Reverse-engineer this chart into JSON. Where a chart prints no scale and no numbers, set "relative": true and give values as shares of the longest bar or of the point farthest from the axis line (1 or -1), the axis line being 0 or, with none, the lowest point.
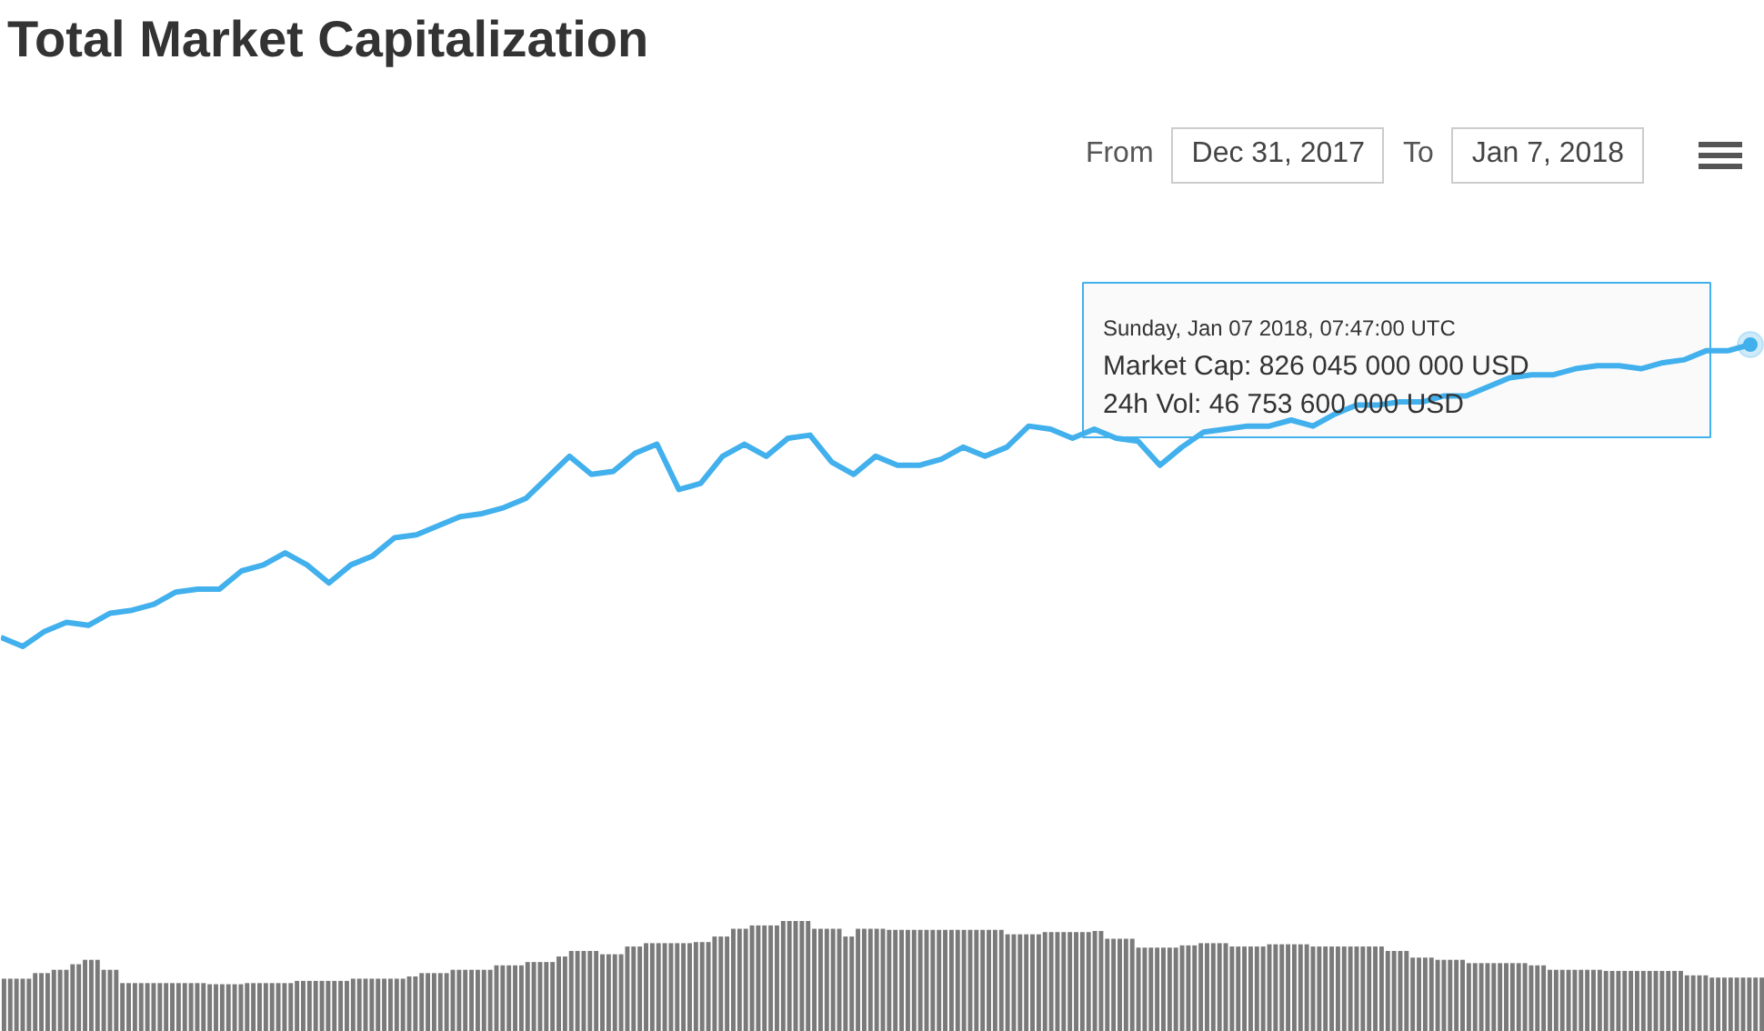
{
  "chart_data": [
    {
      "type": "line",
      "title": "Total Market Capitalization",
      "relative": true,
      "annotations": [
        "From",
        "Dec 31, 2017",
        "To",
        "Jan 7, 2018",
        "Sunday, Jan 07 2018, 07:47:00 UTC",
        "Market Cap: 826 045 000 000 USD",
        "24h Vol: 46 753 600 000 USD"
      ],
      "categories": [
        null,
        null,
        null,
        null,
        null,
        null,
        null,
        null,
        null,
        null,
        null,
        null,
        null,
        null,
        null,
        null,
        null,
        null,
        null,
        null,
        null,
        null,
        null,
        null,
        null,
        null,
        null,
        null,
        null,
        null,
        null,
        null,
        null,
        null,
        null,
        null,
        null,
        null,
        null,
        null,
        null,
        null,
        null,
        null,
        null,
        null,
        null,
        null,
        null,
        null,
        null,
        null,
        null,
        null,
        null,
        null,
        null,
        null,
        null,
        null,
        null,
        null,
        null,
        null,
        null,
        null,
        null,
        null,
        null,
        null,
        null,
        null,
        null,
        null,
        null,
        null,
        null,
        null,
        null,
        null,
        null
      ],
      "marker": "none",
      "line_style": "solid",
      "grid": false,
      "series": [
        {
          "color": "#41b0ec",
          "values": [
            0.03,
            0,
            0.05,
            0.08,
            0.07,
            0.11,
            0.12,
            0.14,
            0.18,
            0.19,
            0.19,
            0.25,
            0.27,
            0.31,
            0.27,
            0.21,
            0.27,
            0.3,
            0.36,
            0.37,
            0.4,
            0.43,
            0.44,
            0.46,
            0.49,
            0.56,
            0.63,
            0.57,
            0.58,
            0.64,
            0.67,
            0.52,
            0.54,
            0.63,
            0.67,
            0.63,
            0.69,
            0.7,
            0.61,
            0.57,
            0.63,
            0.6,
            0.6,
            0.62,
            0.66,
            0.63,
            0.66,
            0.73,
            0.72,
            0.69,
            0.72,
            0.69,
            0.68,
            0.6,
            0.66,
            0.71,
            0.72,
            0.73,
            0.73,
            0.75,
            0.73,
            0.77,
            0.8,
            0.8,
            0.81,
            0.81,
            0.83,
            0.83,
            0.86,
            0.89,
            0.9,
            0.9,
            0.92,
            0.93,
            0.93,
            0.92,
            0.94,
            0.95,
            0.98,
            0.98,
            1
          ]
        }
      ]
    },
    {
      "type": "bar",
      "relative": true,
      "color": "#7a7a7a",
      "grid": false,
      "categories": [
        null,
        null,
        null,
        null,
        null,
        null,
        null,
        null,
        null,
        null,
        null,
        null,
        null,
        null,
        null,
        null,
        null,
        null,
        null,
        null,
        null,
        null,
        null,
        null,
        null,
        null,
        null,
        null,
        null,
        null,
        null,
        null,
        null,
        null,
        null,
        null,
        null,
        null,
        null,
        null,
        null,
        null,
        null,
        null,
        null,
        null,
        null,
        null,
        null,
        null,
        null,
        null,
        null,
        null,
        null,
        null,
        null,
        null,
        null,
        null,
        null,
        null,
        null,
        null,
        null,
        null,
        null,
        null,
        null,
        null,
        null,
        null,
        null,
        null,
        null,
        null,
        null,
        null,
        null,
        null,
        null,
        null,
        null,
        null,
        null,
        null,
        null,
        null,
        null,
        null,
        null,
        null,
        null,
        null,
        null,
        null,
        null,
        null,
        null,
        null,
        null,
        null,
        null,
        null,
        null,
        null,
        null,
        null,
        null,
        null,
        null,
        null,
        null,
        null,
        null,
        null,
        null,
        null,
        null,
        null,
        null,
        null,
        null,
        null,
        null,
        null,
        null,
        null,
        null,
        null,
        null,
        null,
        null,
        null,
        null,
        null,
        null,
        null,
        null,
        null,
        null,
        null,
        null,
        null,
        null,
        null,
        null,
        null,
        null,
        null,
        null,
        null,
        null,
        null,
        null,
        null,
        null,
        null,
        null,
        null,
        null,
        null,
        null,
        null,
        null,
        null,
        null,
        null,
        null,
        null,
        null,
        null,
        null,
        null,
        null,
        null,
        null,
        null,
        null,
        null,
        null,
        null,
        null,
        null,
        null,
        null,
        null,
        null,
        null,
        null,
        null,
        null,
        null,
        null,
        null,
        null,
        null,
        null,
        null,
        null,
        null,
        null,
        null,
        null,
        null,
        null,
        null,
        null,
        null,
        null,
        null,
        null,
        null,
        null,
        null,
        null,
        null,
        null,
        null,
        null,
        null,
        null,
        null,
        null,
        null,
        null,
        null,
        null,
        null,
        null,
        null,
        null,
        null,
        null,
        null,
        null,
        null,
        null,
        null,
        null,
        null,
        null,
        null,
        null,
        null,
        null,
        null,
        null,
        null,
        null,
        null,
        null,
        null,
        null,
        null,
        null,
        null,
        null,
        null,
        null,
        null,
        null,
        null,
        null,
        null,
        null,
        null,
        null,
        null,
        null,
        null,
        null,
        null,
        null,
        null,
        null,
        null,
        null,
        null,
        null,
        null,
        null,
        null
      ],
      "values": [
        0.48,
        0.48,
        0.48,
        0.48,
        0.48,
        0.53,
        0.53,
        0.53,
        0.56,
        0.56,
        0.56,
        0.61,
        0.61,
        0.65,
        0.65,
        0.65,
        0.56,
        0.56,
        0.56,
        0.44,
        0.44,
        0.44,
        0.44,
        0.44,
        0.44,
        0.44,
        0.44,
        0.44,
        0.44,
        0.44,
        0.44,
        0.44,
        0.44,
        0.43,
        0.43,
        0.43,
        0.43,
        0.43,
        0.43,
        0.44,
        0.44,
        0.44,
        0.44,
        0.44,
        0.44,
        0.44,
        0.44,
        0.46,
        0.46,
        0.46,
        0.46,
        0.46,
        0.46,
        0.46,
        0.46,
        0.46,
        0.48,
        0.48,
        0.48,
        0.48,
        0.48,
        0.48,
        0.48,
        0.48,
        0.48,
        0.5,
        0.5,
        0.53,
        0.53,
        0.53,
        0.53,
        0.53,
        0.56,
        0.56,
        0.56,
        0.56,
        0.56,
        0.56,
        0.56,
        0.6,
        0.6,
        0.6,
        0.6,
        0.6,
        0.63,
        0.63,
        0.63,
        0.63,
        0.63,
        0.68,
        0.68,
        0.73,
        0.73,
        0.73,
        0.73,
        0.73,
        0.7,
        0.7,
        0.7,
        0.7,
        0.77,
        0.77,
        0.77,
        0.8,
        0.8,
        0.8,
        0.8,
        0.8,
        0.8,
        0.8,
        0.8,
        0.81,
        0.81,
        0.81,
        0.86,
        0.86,
        0.86,
        0.93,
        0.93,
        0.93,
        0.96,
        0.96,
        0.96,
        0.96,
        0.96,
        1,
        1,
        1,
        1,
        1,
        0.93,
        0.93,
        0.93,
        0.93,
        0.93,
        0.86,
        0.86,
        0.93,
        0.93,
        0.93,
        0.93,
        0.93,
        0.92,
        0.92,
        0.92,
        0.92,
        0.92,
        0.92,
        0.92,
        0.92,
        0.92,
        0.92,
        0.92,
        0.92,
        0.92,
        0.92,
        0.92,
        0.92,
        0.92,
        0.92,
        0.92,
        0.88,
        0.88,
        0.88,
        0.88,
        0.88,
        0.88,
        0.9,
        0.9,
        0.9,
        0.9,
        0.9,
        0.9,
        0.9,
        0.9,
        0.91,
        0.91,
        0.84,
        0.84,
        0.84,
        0.84,
        0.84,
        0.76,
        0.76,
        0.76,
        0.76,
        0.76,
        0.76,
        0.76,
        0.78,
        0.78,
        0.78,
        0.8,
        0.8,
        0.8,
        0.8,
        0.8,
        0.77,
        0.77,
        0.77,
        0.77,
        0.77,
        0.77,
        0.79,
        0.79,
        0.79,
        0.79,
        0.79,
        0.79,
        0.79,
        0.77,
        0.77,
        0.77,
        0.77,
        0.77,
        0.77,
        0.77,
        0.77,
        0.77,
        0.77,
        0.77,
        0.77,
        0.73,
        0.73,
        0.73,
        0.73,
        0.67,
        0.67,
        0.67,
        0.67,
        0.65,
        0.65,
        0.65,
        0.65,
        0.65,
        0.62,
        0.62,
        0.62,
        0.62,
        0.62,
        0.62,
        0.62,
        0.62,
        0.62,
        0.62,
        0.6,
        0.6,
        0.6,
        0.56,
        0.56,
        0.56,
        0.56,
        0.56,
        0.56,
        0.56,
        0.56,
        0.56,
        0.55,
        0.55,
        0.55,
        0.55,
        0.55,
        0.55,
        0.55,
        0.55,
        0.55,
        0.55,
        0.55,
        0.55,
        0.55,
        0.51,
        0.51,
        0.51,
        0.51,
        0.49,
        0.49,
        0.49,
        0.49,
        0.49,
        0.49,
        0.49,
        0.49,
        0.49
      ]
    }
  ]
}
